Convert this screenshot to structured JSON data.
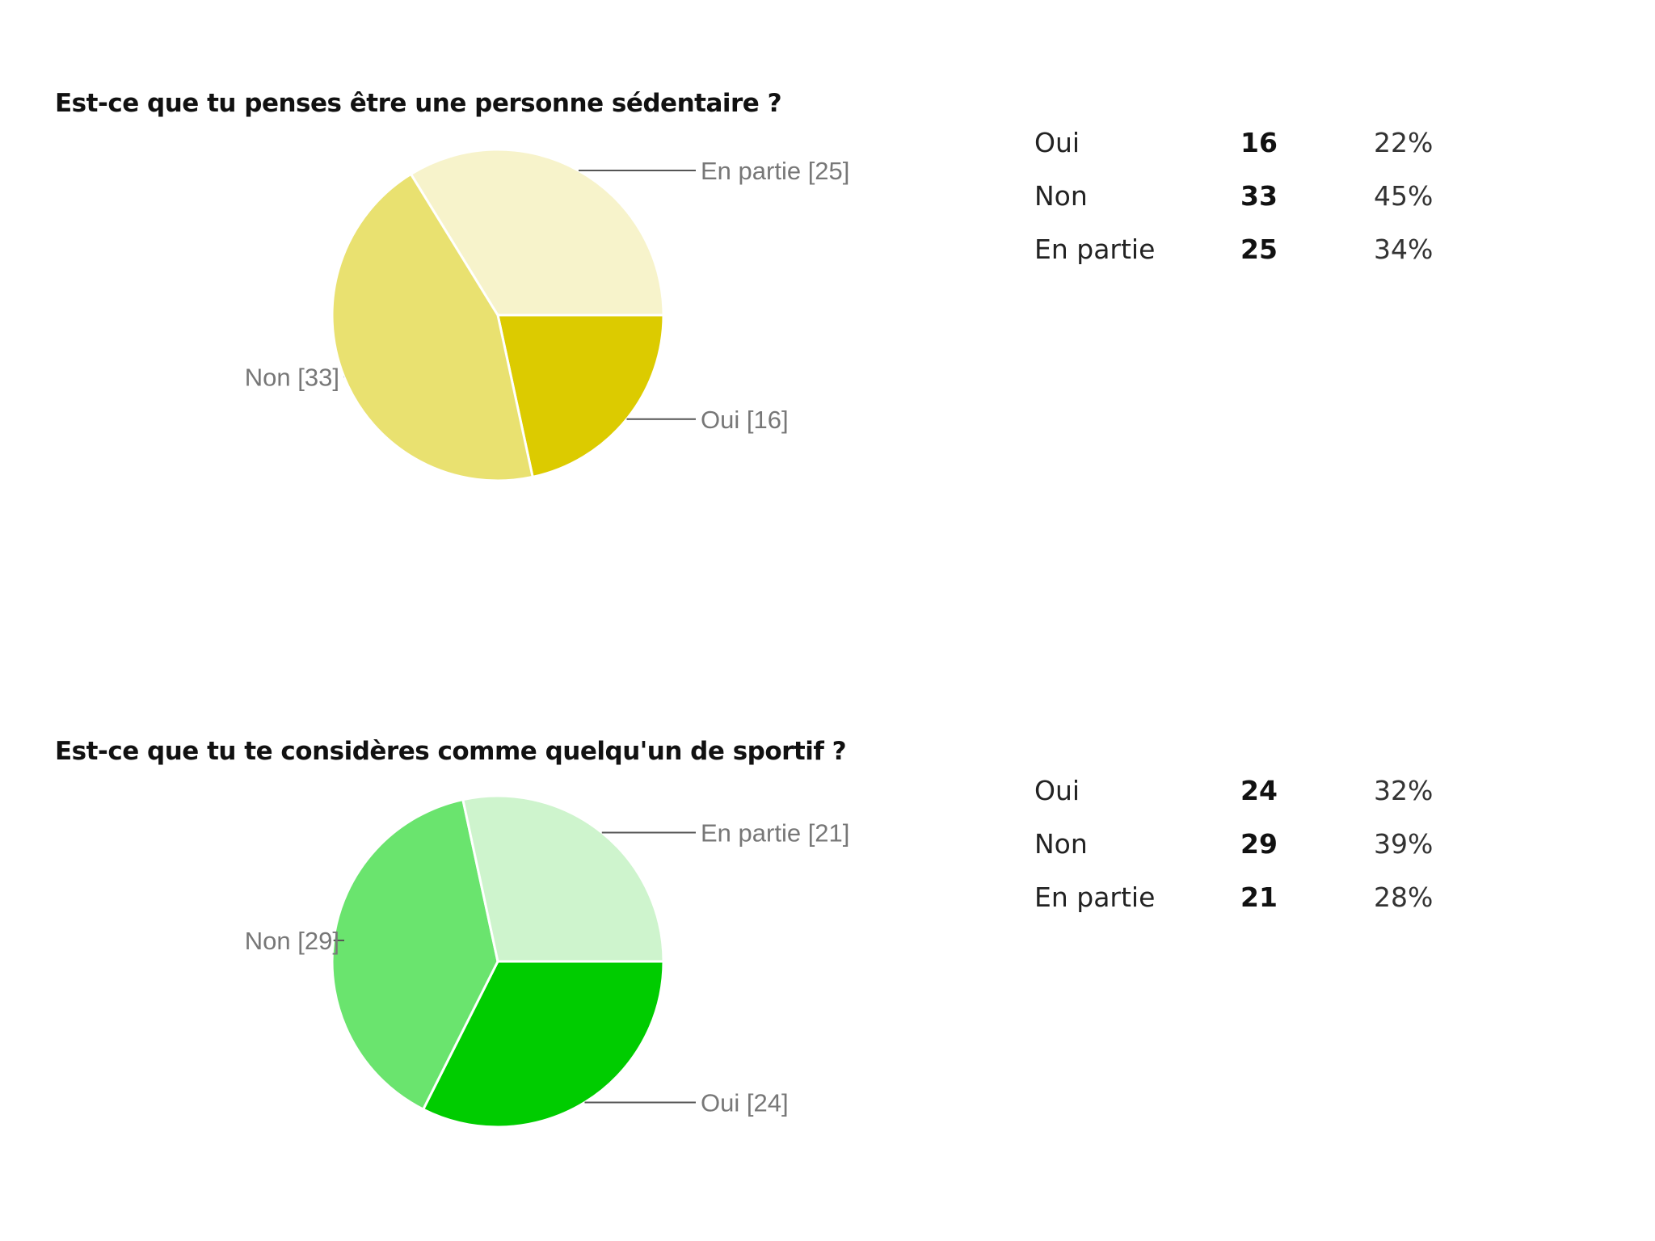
{
  "questions": [
    {
      "title": "Est-ce que tu penses être une personne sédentaire ?",
      "rows": [
        {
          "label": "Oui",
          "count": "16",
          "percent": "22%"
        },
        {
          "label": "Non",
          "count": "33",
          "percent": "45%"
        },
        {
          "label": "En partie",
          "count": "25",
          "percent": "34%"
        }
      ]
    },
    {
      "title": "Est-ce que tu te considères comme quelqu'un de sportif ?",
      "rows": [
        {
          "label": "Oui",
          "count": "24",
          "percent": "32%"
        },
        {
          "label": "Non",
          "count": "29",
          "percent": "39%"
        },
        {
          "label": "En partie",
          "count": "21",
          "percent": "28%"
        }
      ]
    }
  ],
  "chart_data": [
    {
      "type": "pie",
      "title": "Est-ce que tu penses être une personne sédentaire ?",
      "categories": [
        "Oui",
        "Non",
        "En partie"
      ],
      "values": [
        16,
        33,
        25
      ],
      "slice_labels": [
        "Oui [16]",
        "Non [33]",
        "En partie [25]"
      ],
      "colors": [
        "#dccb00",
        "#e9e170",
        "#f7f3cb"
      ],
      "legend": "none"
    },
    {
      "type": "pie",
      "title": "Est-ce que tu te considères comme quelqu'un de sportif ?",
      "categories": [
        "Oui",
        "Non",
        "En partie"
      ],
      "values": [
        24,
        29,
        21
      ],
      "slice_labels": [
        "Oui [24]",
        "Non [29]",
        "En partie [21]"
      ],
      "colors": [
        "#00cc00",
        "#6ae46e",
        "#cef4cd"
      ],
      "legend": "none"
    }
  ]
}
